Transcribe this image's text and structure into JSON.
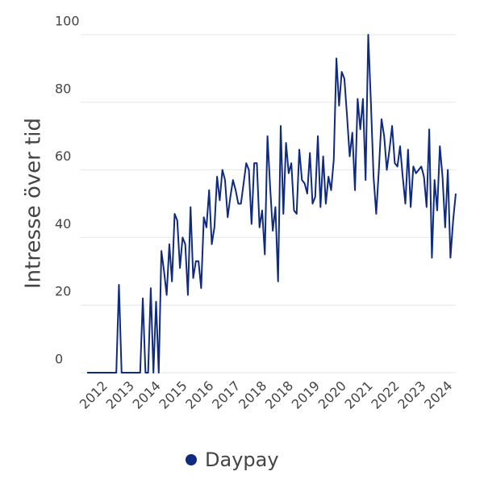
{
  "chart_data": {
    "type": "line",
    "y_label": "Intresse över tid",
    "categories": [
      null,
      null,
      null,
      null,
      null,
      null,
      null,
      "2012",
      null,
      null,
      null,
      null,
      null,
      null,
      null,
      null,
      null,
      "2013",
      null,
      null,
      null,
      null,
      null,
      null,
      null,
      null,
      null,
      "2014",
      null,
      null,
      null,
      null,
      null,
      null,
      null,
      null,
      null,
      "2015",
      null,
      null,
      null,
      null,
      null,
      null,
      null,
      null,
      null,
      "2016",
      null,
      null,
      null,
      null,
      null,
      null,
      null,
      null,
      null,
      "2017",
      null,
      null,
      null,
      null,
      null,
      null,
      null,
      null,
      null,
      "2018",
      null,
      null,
      null,
      null,
      null,
      null,
      null,
      null,
      null,
      "2018",
      null,
      null,
      null,
      null,
      null,
      null,
      null,
      null,
      null,
      "2019",
      null,
      null,
      null,
      null,
      null,
      null,
      null,
      null,
      null,
      "2020",
      null,
      null,
      null,
      null,
      null,
      null,
      null,
      null,
      null,
      "2021",
      null,
      null,
      null,
      null,
      null,
      null,
      null,
      null,
      null,
      "2022",
      null,
      null,
      null,
      null,
      null,
      null,
      null,
      null,
      null,
      "2023",
      null,
      null,
      null,
      null,
      null,
      null,
      null,
      null,
      null,
      "2024",
      null,
      null
    ],
    "series": [
      {
        "name": "Daypay",
        "color": "#0f2a80",
        "values": [
          0,
          0,
          0,
          0,
          0,
          0,
          0,
          0,
          0,
          0,
          0,
          0,
          26,
          0,
          0,
          0,
          0,
          0,
          0,
          0,
          0,
          22,
          0,
          0,
          25,
          0,
          21,
          0,
          36,
          30,
          23,
          38,
          27,
          47,
          45,
          31,
          40,
          38,
          23,
          49,
          28,
          33,
          33,
          25,
          46,
          43,
          54,
          38,
          43,
          58,
          51,
          60,
          57,
          46,
          52,
          57,
          54,
          50,
          50,
          56,
          62,
          60,
          44,
          62,
          62,
          43,
          48,
          35,
          70,
          55,
          42,
          49,
          27,
          73,
          47,
          68,
          59,
          62,
          48,
          47,
          66,
          57,
          56,
          53,
          65,
          50,
          52,
          70,
          49,
          64,
          50,
          58,
          54,
          63,
          93,
          79,
          89,
          87,
          76,
          64,
          71,
          54,
          81,
          72,
          81,
          57,
          100,
          80,
          58,
          47,
          60,
          75,
          70,
          60,
          66,
          73,
          62,
          61,
          67,
          58,
          50,
          66,
          49,
          61,
          59,
          60,
          61,
          58,
          49,
          72,
          34,
          57,
          48,
          67,
          58,
          43,
          60,
          34,
          45,
          53
        ]
      }
    ],
    "ylim": [
      0,
      100
    ],
    "yticks": [
      0,
      20,
      40,
      60,
      80,
      100
    ],
    "grid": true
  }
}
